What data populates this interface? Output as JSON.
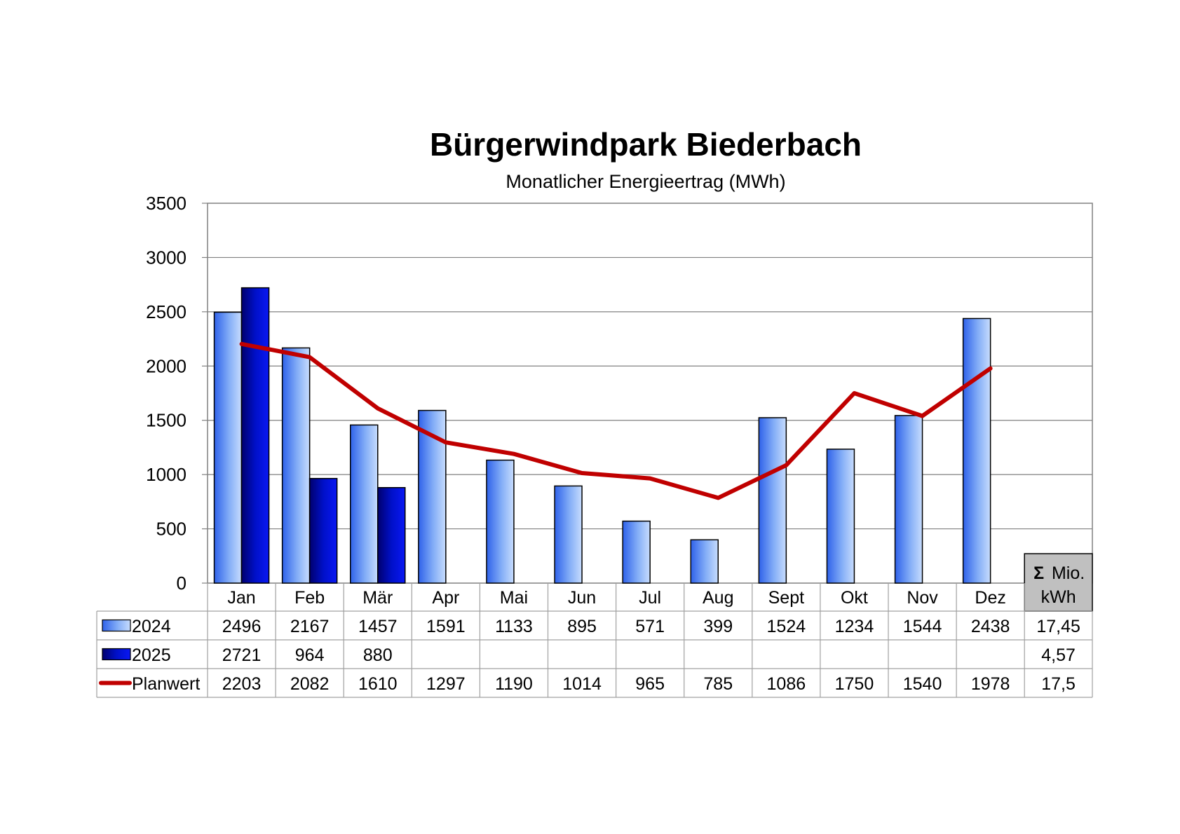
{
  "chart_data": {
    "type": "bar",
    "title": "Bürgerwindpark Biederbach",
    "subtitle": "Monatlicher Energieertrag (MWh)",
    "categories": [
      "Jan",
      "Feb",
      "Mär",
      "Apr",
      "Mai",
      "Jun",
      "Jul",
      "Aug",
      "Sept",
      "Okt",
      "Nov",
      "Dez"
    ],
    "series": [
      {
        "name": "2024",
        "type": "bar",
        "color": "#5b8ff0",
        "values": [
          2496,
          2167,
          1457,
          1591,
          1133,
          895,
          571,
          399,
          1524,
          1234,
          1544,
          2438
        ],
        "total": "17,45"
      },
      {
        "name": "2025",
        "type": "bar",
        "color": "#0a14d8",
        "values": [
          2721,
          964,
          880,
          null,
          null,
          null,
          null,
          null,
          null,
          null,
          null,
          null
        ],
        "total": "4,57"
      },
      {
        "name": "Planwert",
        "type": "line",
        "color": "#c00000",
        "values": [
          2203,
          2082,
          1610,
          1297,
          1190,
          1014,
          965,
          785,
          1086,
          1750,
          1540,
          1978
        ],
        "total": "17,5"
      }
    ],
    "yticks": [
      "0",
      "500",
      "1000",
      "1500",
      "2000",
      "2500",
      "3000",
      "3500"
    ],
    "ylim": [
      0,
      3500
    ],
    "grid": true,
    "sum_header": {
      "symbol": "Σ",
      "line1": "Mio.",
      "line2": "kWh"
    },
    "legend": "data table"
  }
}
